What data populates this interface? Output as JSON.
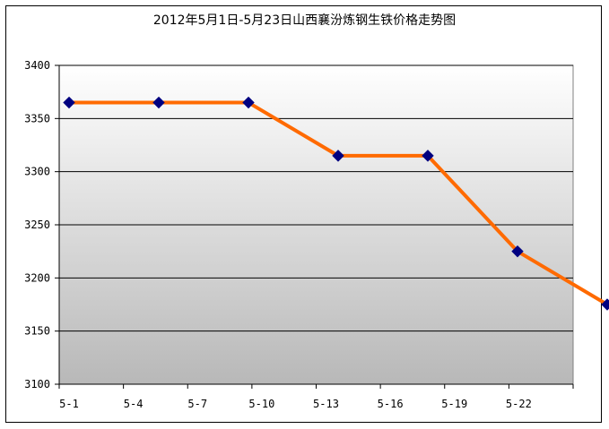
{
  "chart_data": {
    "type": "line",
    "title": "2012年5月1日-5月23日山西襄汾炼钢生铁价格走势图",
    "x_tick_labels": [
      "5-1",
      "5-4",
      "5-7",
      "5-10",
      "5-13",
      "5-16",
      "5-19",
      "5-22"
    ],
    "y_tick_labels": [
      "3100",
      "3150",
      "3200",
      "3250",
      "3300",
      "3350",
      "3400"
    ],
    "ylim": [
      3100,
      3400
    ],
    "grid": "horizontal",
    "legend": "none",
    "series": [
      {
        "x": [
          1,
          2,
          3,
          4,
          5,
          6,
          7
        ],
        "values": [
          3365,
          3365,
          3365,
          3315,
          3315,
          3225,
          3175
        ]
      }
    ],
    "colors": {
      "line": "#ff6a00",
      "marker": "#000080",
      "plot_bg_top": "#ffffff",
      "plot_bg_bottom": "#b8b8b8",
      "gridline": "#000000"
    }
  }
}
